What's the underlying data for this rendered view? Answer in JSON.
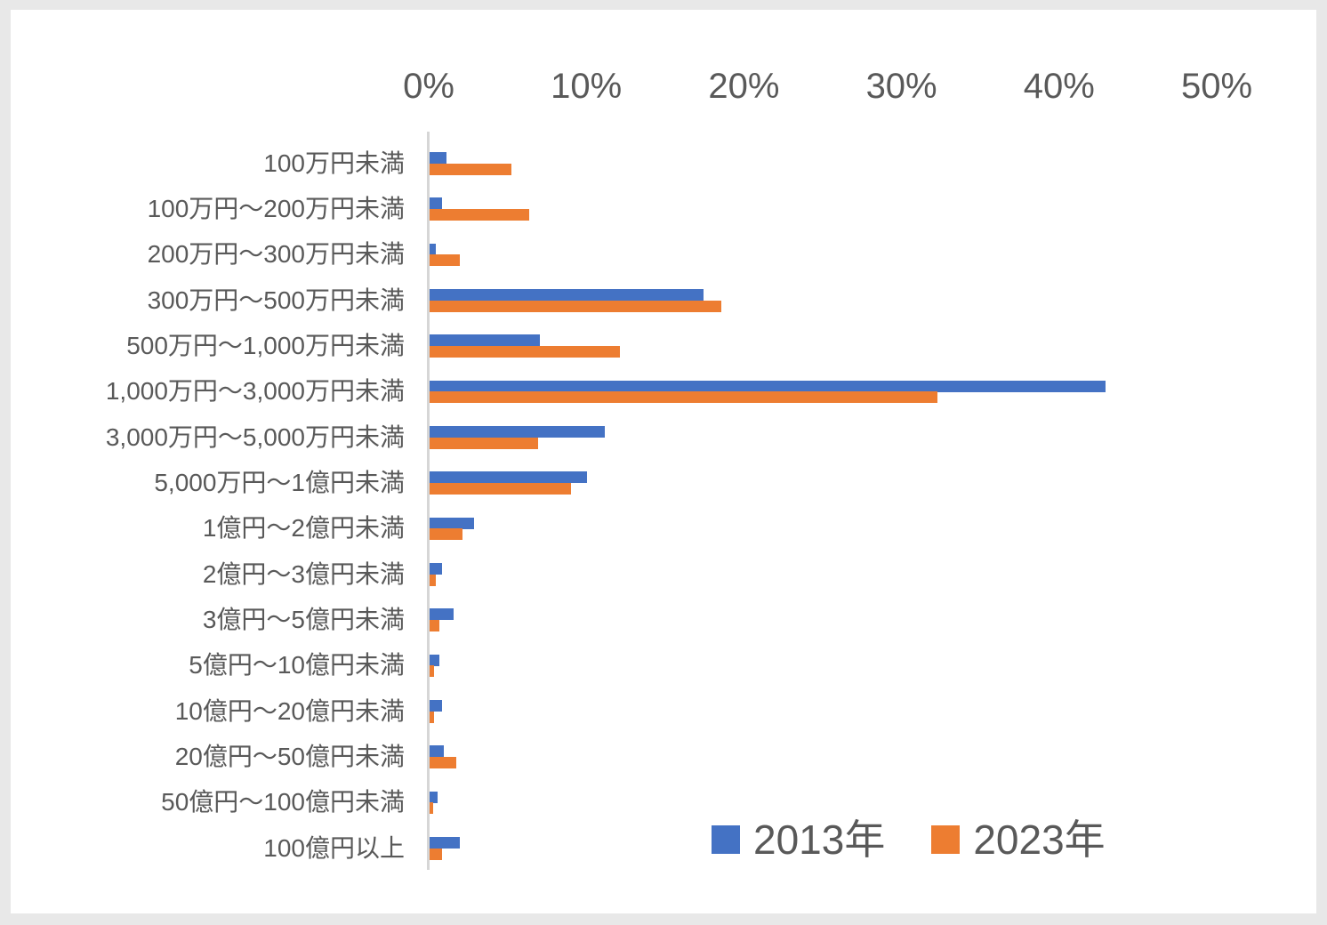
{
  "frame": {
    "background_color": "#e8e8e8",
    "card_color": "#ffffff"
  },
  "chart_data": {
    "type": "bar",
    "orientation": "horizontal",
    "title": "",
    "categories": [
      "100万円未満",
      "100万円～200万円未満",
      "200万円～300万円未満",
      "300万円～500万円未満",
      "500万円～1,000万円未満",
      "1,000万円～3,000万円未満",
      "3,000万円～5,000万円未満",
      "5,000万円～1億円未満",
      "1億円～2億円未満",
      "2億円～3億円未満",
      "3億円～5億円未満",
      "5億円～10億円未満",
      "10億円～20億円未満",
      "20億円～50億円未満",
      "50億円～100億円未満",
      "100億円以上"
    ],
    "series": [
      {
        "name": "2013年",
        "color": "#4472C4",
        "values": [
          1.1,
          0.8,
          0.4,
          17.4,
          7.0,
          42.9,
          11.1,
          10.0,
          2.8,
          0.8,
          1.5,
          0.6,
          0.8,
          0.9,
          0.5,
          1.9
        ]
      },
      {
        "name": "2023年",
        "color": "#ED7D31",
        "values": [
          5.2,
          6.3,
          1.9,
          18.5,
          12.1,
          32.2,
          6.9,
          9.0,
          2.1,
          0.4,
          0.6,
          0.3,
          0.3,
          1.7,
          0.2,
          0.8
        ]
      }
    ],
    "x_axis": {
      "position": "top",
      "min": 0,
      "max": 50,
      "unit": "%",
      "tick_labels": [
        "0%",
        "10%",
        "20%",
        "30%",
        "40%",
        "50%"
      ]
    },
    "grid": false,
    "axis_line_color": "#d6d6d6",
    "text_color": "#595959",
    "legend": {
      "position": "bottom-right",
      "entries": [
        "2013年",
        "2023年"
      ]
    }
  }
}
